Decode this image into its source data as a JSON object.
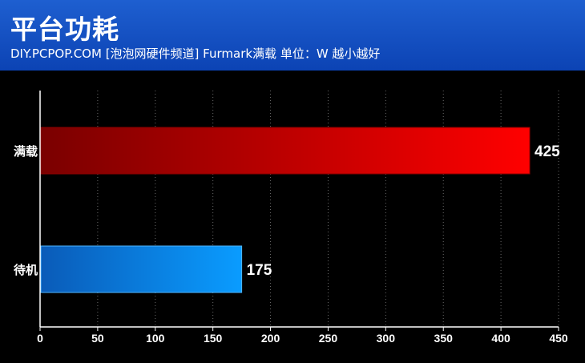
{
  "header": {
    "title": "平台功耗",
    "subtitle": "DIY.PCPOP.COM [泡泡网硬件频道]  Furmark满载 单位：W  越小越好"
  },
  "colors": {
    "header_bg": "#1050c4",
    "bar_load": "#ff0000",
    "bar_idle": "#0a9cff",
    "background": "#000000"
  },
  "chart_data": {
    "type": "bar",
    "orientation": "horizontal",
    "categories": [
      "满载",
      "待机"
    ],
    "values": [
      425,
      175
    ],
    "value_labels": [
      "425",
      "175"
    ],
    "xlim": [
      0,
      450
    ],
    "xticks": [
      "0",
      "50",
      "100",
      "150",
      "200",
      "250",
      "300",
      "350",
      "400",
      "450"
    ],
    "grid": "vertical dotted",
    "unit": "W"
  }
}
